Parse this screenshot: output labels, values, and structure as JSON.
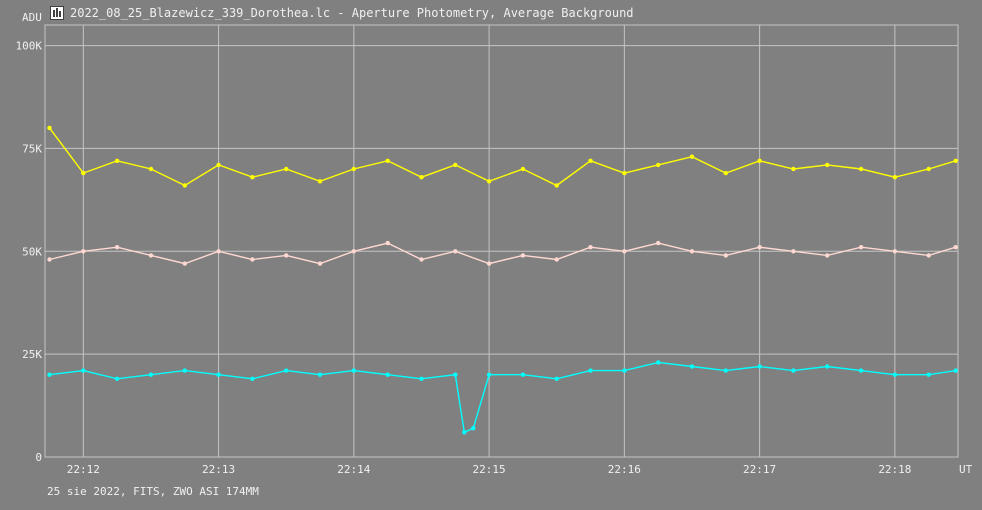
{
  "window": {
    "title": "2022_08_25_Blazewicz_339_Dorothea.lc - Aperture Photometry, Average Background"
  },
  "footer": {
    "text": "25 sie 2022, FITS, ZWO ASI 174MM"
  },
  "colors": {
    "background": "#808080",
    "grid": "#c4c4c4",
    "text": "#f0f0f0",
    "yellow": "#ffff00",
    "pink": "#ffd8d2",
    "cyan": "#00ffff"
  },
  "chart_data": {
    "type": "line",
    "ylabel": "ADU",
    "xlabel": "UT",
    "ylim": [
      0,
      105000
    ],
    "xlim": [
      "22:11:43",
      "22:18:28"
    ],
    "y_ticks": [
      0,
      25000,
      50000,
      75000,
      100000
    ],
    "y_tick_labels": [
      "0",
      "25K",
      "50K",
      "75K",
      "100K"
    ],
    "x_ticks": [
      "22:12:00",
      "22:13:00",
      "22:14:00",
      "22:15:00",
      "22:16:00",
      "22:17:00",
      "22:18:00"
    ],
    "x_tick_labels": [
      "22:12",
      "22:13",
      "22:14",
      "22:15",
      "22:16",
      "22:17",
      "22:18"
    ],
    "grid": true,
    "series": [
      {
        "color": "#ffff00",
        "points": [
          [
            "22:11:45",
            80000
          ],
          [
            "22:12:00",
            69000
          ],
          [
            "22:12:15",
            72000
          ],
          [
            "22:12:30",
            70000
          ],
          [
            "22:12:45",
            66000
          ],
          [
            "22:13:00",
            71000
          ],
          [
            "22:13:15",
            68000
          ],
          [
            "22:13:30",
            70000
          ],
          [
            "22:13:45",
            67000
          ],
          [
            "22:14:00",
            70000
          ],
          [
            "22:14:15",
            72000
          ],
          [
            "22:14:30",
            68000
          ],
          [
            "22:14:45",
            71000
          ],
          [
            "22:15:00",
            67000
          ],
          [
            "22:15:15",
            70000
          ],
          [
            "22:15:30",
            66000
          ],
          [
            "22:15:45",
            72000
          ],
          [
            "22:16:00",
            69000
          ],
          [
            "22:16:15",
            71000
          ],
          [
            "22:16:30",
            73000
          ],
          [
            "22:16:45",
            69000
          ],
          [
            "22:17:00",
            72000
          ],
          [
            "22:17:15",
            70000
          ],
          [
            "22:17:30",
            71000
          ],
          [
            "22:17:45",
            70000
          ],
          [
            "22:18:00",
            68000
          ],
          [
            "22:18:15",
            70000
          ],
          [
            "22:18:27",
            72000
          ]
        ]
      },
      {
        "color": "#ffd8d2",
        "points": [
          [
            "22:11:45",
            48000
          ],
          [
            "22:12:00",
            50000
          ],
          [
            "22:12:15",
            51000
          ],
          [
            "22:12:30",
            49000
          ],
          [
            "22:12:45",
            47000
          ],
          [
            "22:13:00",
            50000
          ],
          [
            "22:13:15",
            48000
          ],
          [
            "22:13:30",
            49000
          ],
          [
            "22:13:45",
            47000
          ],
          [
            "22:14:00",
            50000
          ],
          [
            "22:14:15",
            52000
          ],
          [
            "22:14:30",
            48000
          ],
          [
            "22:14:45",
            50000
          ],
          [
            "22:15:00",
            47000
          ],
          [
            "22:15:15",
            49000
          ],
          [
            "22:15:30",
            48000
          ],
          [
            "22:15:45",
            51000
          ],
          [
            "22:16:00",
            50000
          ],
          [
            "22:16:15",
            52000
          ],
          [
            "22:16:30",
            50000
          ],
          [
            "22:16:45",
            49000
          ],
          [
            "22:17:00",
            51000
          ],
          [
            "22:17:15",
            50000
          ],
          [
            "22:17:30",
            49000
          ],
          [
            "22:17:45",
            51000
          ],
          [
            "22:18:00",
            50000
          ],
          [
            "22:18:15",
            49000
          ],
          [
            "22:18:27",
            51000
          ]
        ]
      },
      {
        "color": "#00ffff",
        "points": [
          [
            "22:11:45",
            20000
          ],
          [
            "22:12:00",
            21000
          ],
          [
            "22:12:15",
            19000
          ],
          [
            "22:12:30",
            20000
          ],
          [
            "22:12:45",
            21000
          ],
          [
            "22:13:00",
            20000
          ],
          [
            "22:13:15",
            19000
          ],
          [
            "22:13:30",
            21000
          ],
          [
            "22:13:45",
            20000
          ],
          [
            "22:14:00",
            21000
          ],
          [
            "22:14:15",
            20000
          ],
          [
            "22:14:30",
            19000
          ],
          [
            "22:14:45",
            20000
          ],
          [
            "22:14:49",
            6000
          ],
          [
            "22:14:53",
            7000
          ],
          [
            "22:15:00",
            20000
          ],
          [
            "22:15:15",
            20000
          ],
          [
            "22:15:30",
            19000
          ],
          [
            "22:15:45",
            21000
          ],
          [
            "22:16:00",
            21000
          ],
          [
            "22:16:15",
            23000
          ],
          [
            "22:16:30",
            22000
          ],
          [
            "22:16:45",
            21000
          ],
          [
            "22:17:00",
            22000
          ],
          [
            "22:17:15",
            21000
          ],
          [
            "22:17:30",
            22000
          ],
          [
            "22:17:45",
            21000
          ],
          [
            "22:18:00",
            20000
          ],
          [
            "22:18:15",
            20000
          ],
          [
            "22:18:27",
            21000
          ]
        ]
      }
    ]
  }
}
